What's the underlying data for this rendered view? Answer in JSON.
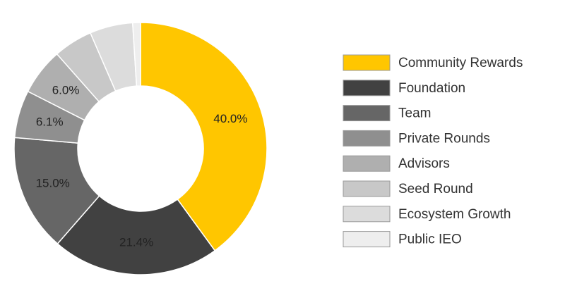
{
  "chart_data": {
    "type": "pie",
    "variant": "donut",
    "title": "",
    "legend_position": "right",
    "categories": [
      "Community Rewards",
      "Foundation",
      "Team",
      "Private Rounds",
      "Advisors",
      "Seed Round",
      "Ecosystem Growth",
      "Public IEO"
    ],
    "values": [
      40.0,
      21.4,
      15.0,
      6.1,
      6.0,
      5.0,
      5.5,
      1.0
    ],
    "labels": [
      "40.0%",
      "21.4%",
      "15.0%",
      "6.1%",
      "6.0%",
      "",
      "",
      ""
    ],
    "colors": [
      "#FFC600",
      "#414141",
      "#666666",
      "#8F8F8F",
      "#AFAFAF",
      "#C8C8C8",
      "#DCDCDC",
      "#EEEEEE"
    ]
  }
}
